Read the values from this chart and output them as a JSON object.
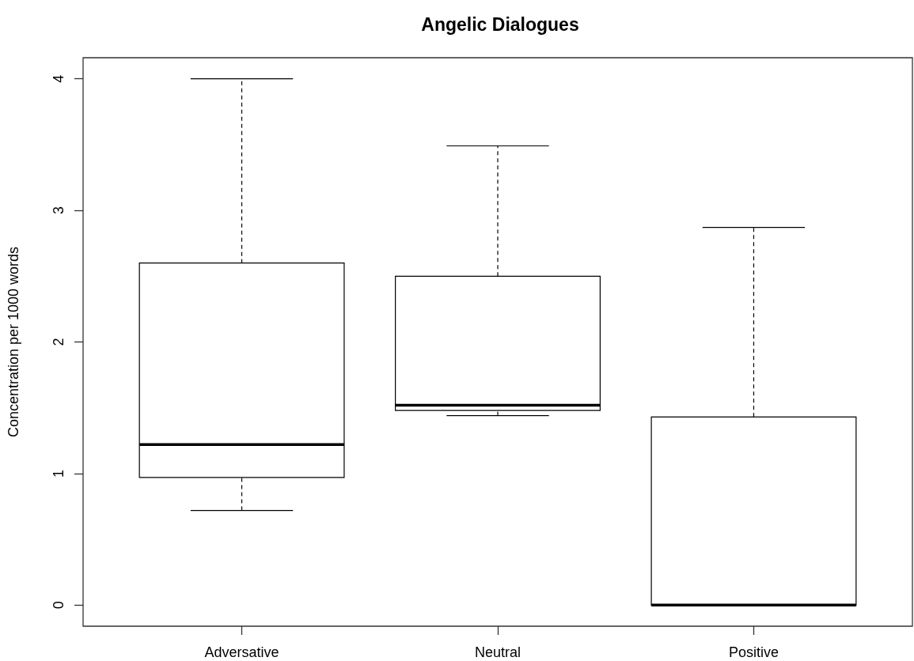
{
  "chart_data": {
    "type": "box",
    "title": "Angelic Dialogues",
    "ylabel": "Concentration per 1000 words",
    "categories": [
      "Adversative",
      "Neutral",
      "Positive"
    ],
    "boxes": [
      {
        "low": 0.72,
        "q1": 0.97,
        "median": 1.22,
        "q3": 2.6,
        "high": 4.0
      },
      {
        "low": 1.44,
        "q1": 1.48,
        "median": 1.52,
        "q3": 2.5,
        "high": 3.49
      },
      {
        "low": 0,
        "q1": 0,
        "median": 0,
        "q3": 1.43,
        "high": 2.87
      }
    ],
    "color": "#000000",
    "ylim": [
      -0.16,
      4.16
    ],
    "yticks": [
      0,
      1,
      2,
      3,
      4
    ],
    "grid": false,
    "legend": false
  }
}
